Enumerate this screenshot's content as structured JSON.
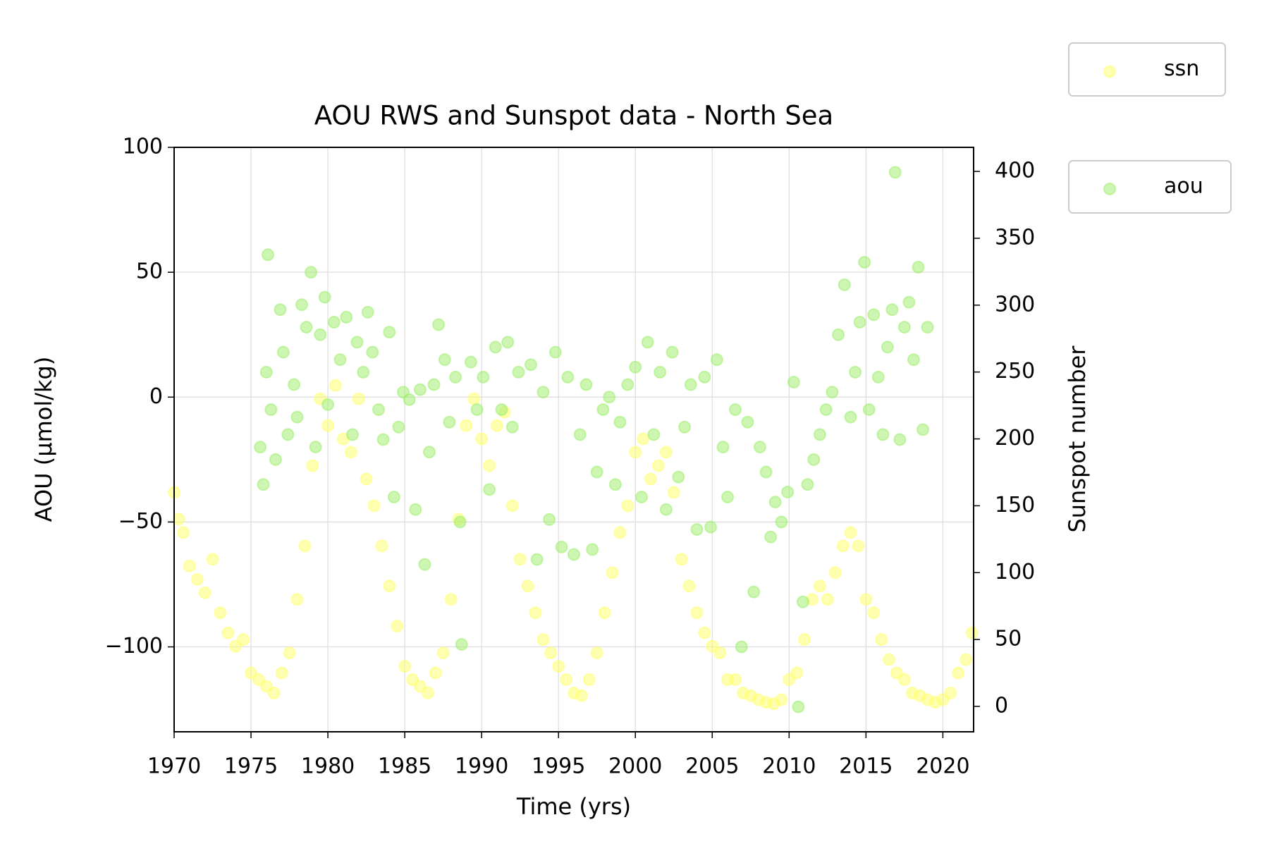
{
  "chart_data": {
    "type": "scatter",
    "title": "AOU RWS and Sunspot data - North Sea",
    "x_label": "Time (yrs)",
    "y_label": "AOU (µmol/kg)",
    "y2_label": "Sunspot number",
    "xlim": [
      1970,
      2022
    ],
    "xticks": [
      1970,
      1975,
      1980,
      1985,
      1990,
      1995,
      2000,
      2005,
      2010,
      2015,
      2020
    ],
    "ylim": [
      -134,
      100
    ],
    "yticks": [
      {
        "value": -100,
        "label": "−100"
      },
      {
        "value": -50,
        "label": "−50"
      },
      0,
      50,
      100
    ],
    "y2lim": [
      -19,
      418
    ],
    "y2ticks": [
      0,
      50,
      100,
      150,
      200,
      250,
      300,
      350,
      400
    ],
    "grid": true,
    "marker_alpha": 0.5,
    "series": [
      {
        "name": "ssn",
        "color": "#ffff66",
        "axis": "y2",
        "x": [
          1970.0,
          1970.3,
          1970.6,
          1971.0,
          1971.5,
          1972.0,
          1972.5,
          1973.0,
          1973.5,
          1974.0,
          1974.5,
          1975.0,
          1975.5,
          1976.0,
          1976.5,
          1977.0,
          1977.5,
          1978.0,
          1978.5,
          1979.0,
          1979.5,
          1980.0,
          1980.5,
          1981.0,
          1981.5,
          1982.0,
          1982.5,
          1983.0,
          1983.5,
          1984.0,
          1984.5,
          1985.0,
          1985.5,
          1986.0,
          1986.5,
          1987.0,
          1987.5,
          1988.0,
          1988.5,
          1989.0,
          1989.5,
          1990.0,
          1990.5,
          1991.0,
          1991.5,
          1992.0,
          1992.5,
          1993.0,
          1993.5,
          1994.0,
          1994.5,
          1995.0,
          1995.5,
          1996.0,
          1996.5,
          1997.0,
          1997.5,
          1998.0,
          1998.5,
          1999.0,
          1999.5,
          2000.0,
          2000.5,
          2001.0,
          2001.5,
          2002.0,
          2002.5,
          2003.0,
          2003.5,
          2004.0,
          2004.5,
          2005.0,
          2005.5,
          2006.0,
          2006.5,
          2007.0,
          2007.5,
          2008.0,
          2008.5,
          2009.0,
          2009.5,
          2010.0,
          2010.5,
          2011.0,
          2011.5,
          2012.0,
          2012.5,
          2013.0,
          2013.5,
          2014.0,
          2014.5,
          2015.0,
          2015.5,
          2016.0,
          2016.5,
          2017.0,
          2017.5,
          2018.0,
          2018.5,
          2019.0,
          2019.5,
          2020.0,
          2020.5,
          2021.0,
          2021.5,
          2021.9
        ],
        "values": [
          160,
          140,
          130,
          105,
          95,
          85,
          110,
          70,
          55,
          45,
          50,
          25,
          20,
          15,
          10,
          25,
          40,
          80,
          120,
          180,
          230,
          210,
          240,
          200,
          190,
          230,
          170,
          150,
          120,
          90,
          60,
          30,
          20,
          15,
          10,
          25,
          40,
          80,
          140,
          210,
          230,
          200,
          180,
          210,
          220,
          150,
          110,
          90,
          70,
          50,
          40,
          30,
          20,
          10,
          8,
          20,
          40,
          70,
          100,
          130,
          150,
          190,
          200,
          170,
          180,
          190,
          160,
          110,
          90,
          70,
          55,
          45,
          40,
          20,
          20,
          10,
          8,
          5,
          3,
          2,
          5,
          20,
          25,
          50,
          80,
          90,
          80,
          100,
          120,
          130,
          120,
          80,
          70,
          50,
          35,
          25,
          20,
          10,
          8,
          5,
          3,
          5,
          10,
          25,
          35,
          55
        ]
      },
      {
        "name": "aou",
        "color": "#99ee66",
        "axis": "y",
        "x": [
          1975.6,
          1975.8,
          1976.0,
          1976.1,
          1976.3,
          1976.6,
          1976.9,
          1977.1,
          1977.4,
          1977.8,
          1978.0,
          1978.3,
          1978.6,
          1978.9,
          1979.2,
          1979.5,
          1979.8,
          1980.0,
          1980.4,
          1980.8,
          1981.2,
          1981.6,
          1981.9,
          1982.3,
          1982.6,
          1982.9,
          1983.3,
          1983.6,
          1984.0,
          1984.3,
          1984.6,
          1984.9,
          1985.3,
          1985.7,
          1986.0,
          1986.3,
          1986.6,
          1986.9,
          1987.2,
          1987.6,
          1987.9,
          1988.3,
          1988.6,
          1988.7,
          1989.3,
          1989.7,
          1990.1,
          1990.5,
          1990.9,
          1991.3,
          1991.7,
          1992.0,
          1992.4,
          1993.2,
          1993.6,
          1994.0,
          1994.4,
          1994.8,
          1995.2,
          1995.6,
          1996.0,
          1996.4,
          1996.8,
          1997.2,
          1997.5,
          1997.9,
          1998.3,
          1998.7,
          1999.0,
          1999.5,
          2000.0,
          2000.4,
          2000.8,
          2001.2,
          2001.6,
          2002.0,
          2002.4,
          2002.8,
          2003.2,
          2003.6,
          2004.0,
          2004.5,
          2004.9,
          2005.3,
          2005.7,
          2006.0,
          2006.5,
          2006.9,
          2007.3,
          2007.7,
          2008.1,
          2008.5,
          2008.8,
          2009.1,
          2009.5,
          2009.9,
          2010.3,
          2010.6,
          2010.9,
          2011.2,
          2011.6,
          2012.0,
          2012.4,
          2012.8,
          2013.2,
          2013.6,
          2014.0,
          2014.3,
          2014.6,
          2014.9,
          2015.2,
          2015.5,
          2015.8,
          2016.1,
          2016.4,
          2016.7,
          2016.9,
          2017.2,
          2017.5,
          2017.8,
          2018.1,
          2018.4,
          2018.7,
          2019.0
        ],
        "values": [
          -20,
          -35,
          10,
          57,
          -5,
          -25,
          35,
          18,
          -15,
          5,
          -8,
          37,
          28,
          50,
          -20,
          25,
          40,
          -3,
          30,
          15,
          32,
          -15,
          22,
          10,
          34,
          18,
          -5,
          -17,
          26,
          -40,
          -12,
          2,
          -1,
          -45,
          3,
          -67,
          -22,
          5,
          29,
          15,
          -10,
          8,
          -50,
          -99,
          14,
          -5,
          8,
          -37,
          20,
          -5,
          22,
          -12,
          10,
          13,
          -65,
          2,
          -49,
          18,
          -60,
          8,
          -63,
          -15,
          5,
          -61,
          -30,
          -5,
          0,
          -35,
          -10,
          5,
          12,
          -40,
          22,
          -15,
          10,
          -45,
          18,
          -32,
          -12,
          5,
          -53,
          8,
          -52,
          15,
          -20,
          -40,
          -5,
          -100,
          -10,
          -78,
          -20,
          -30,
          -56,
          -42,
          -50,
          -38,
          6,
          -124,
          -82,
          -35,
          -25,
          -15,
          -5,
          2,
          25,
          45,
          -8,
          10,
          30,
          54,
          -5,
          33,
          8,
          -15,
          20,
          35,
          90,
          -17,
          28,
          38,
          15,
          52,
          -13,
          28
        ]
      }
    ]
  }
}
